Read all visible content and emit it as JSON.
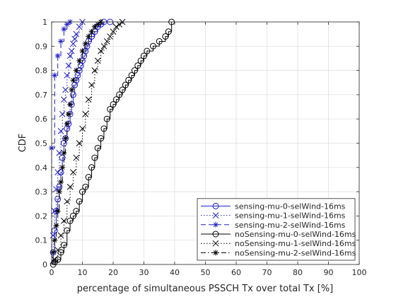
{
  "chart_data": {
    "type": "line",
    "subtype": "empirical CDF (stairs)",
    "title": "",
    "xlabel": "percentage of simultaneous PSSCH Tx over total Tx [%]",
    "ylabel": "CDF",
    "xlim": [
      0,
      100
    ],
    "ylim": [
      0,
      1
    ],
    "x_ticks": [
      "0",
      "10",
      "20",
      "30",
      "40",
      "50",
      "60",
      "70",
      "80",
      "90",
      "100"
    ],
    "y_ticks": [
      "0",
      "0.1",
      "0.2",
      "0.3",
      "0.4",
      "0.5",
      "0.6",
      "0.7",
      "0.8",
      "0.9",
      "1"
    ],
    "grid": true,
    "box": true,
    "legend_position": "bottom-right",
    "series": [
      {
        "name": "sensing-mu-0-selWind-16ms",
        "color": "#1f1fcc",
        "line_style": "solid",
        "marker": "circle",
        "x": [
          0.5,
          1,
          1.5,
          2,
          2.5,
          3,
          3.5,
          4,
          4.5,
          5,
          5.5,
          6,
          6.5,
          7,
          7.5,
          8,
          8.5,
          9,
          9.5,
          10,
          10.5,
          11,
          11.5,
          12,
          13,
          14,
          15,
          16,
          17,
          19
        ],
        "y": [
          0.05,
          0.14,
          0.22,
          0.27,
          0.32,
          0.38,
          0.44,
          0.5,
          0.52,
          0.56,
          0.58,
          0.62,
          0.66,
          0.7,
          0.74,
          0.76,
          0.78,
          0.8,
          0.82,
          0.84,
          0.86,
          0.88,
          0.9,
          0.92,
          0.94,
          0.96,
          0.98,
          0.99,
          1.0,
          1.0
        ]
      },
      {
        "name": "sensing-mu-1-selWind-16ms",
        "color": "#1f1fcc",
        "line_style": "dotted",
        "marker": "x",
        "x": [
          0.5,
          1,
          1.5,
          2,
          2.5,
          3,
          3.5,
          4,
          4.5,
          5,
          5.5,
          6,
          6.5,
          7,
          7.5,
          8,
          9,
          10
        ],
        "y": [
          0.12,
          0.22,
          0.31,
          0.38,
          0.46,
          0.55,
          0.62,
          0.68,
          0.72,
          0.78,
          0.82,
          0.86,
          0.88,
          0.91,
          0.93,
          0.95,
          0.98,
          1.0
        ]
      },
      {
        "name": "sensing-mu-2-selWind-16ms",
        "color": "#1f1fcc",
        "line_style": "dashed",
        "marker": "asterisk",
        "x": [
          0,
          1,
          2,
          3,
          4,
          5,
          6
        ],
        "y": [
          0.48,
          0.78,
          0.86,
          0.92,
          0.97,
          0.99,
          1.0
        ]
      },
      {
        "name": "noSensing-mu-0-selWind-16ms",
        "color": "#000000",
        "line_style": "solid",
        "marker": "circle",
        "x": [
          0.5,
          1,
          2,
          3,
          4,
          5,
          6,
          7,
          8,
          9,
          10,
          11,
          12,
          13,
          14,
          15,
          16,
          17,
          18,
          19,
          20,
          21,
          22,
          23,
          24,
          25,
          26,
          27,
          28,
          29,
          30,
          31,
          33,
          35,
          37,
          38,
          39
        ],
        "y": [
          0.0,
          0.01,
          0.02,
          0.05,
          0.08,
          0.14,
          0.18,
          0.2,
          0.22,
          0.26,
          0.3,
          0.32,
          0.36,
          0.4,
          0.44,
          0.48,
          0.52,
          0.56,
          0.6,
          0.64,
          0.66,
          0.68,
          0.7,
          0.72,
          0.74,
          0.76,
          0.78,
          0.8,
          0.82,
          0.84,
          0.86,
          0.88,
          0.9,
          0.92,
          0.94,
          0.96,
          1.0
        ]
      },
      {
        "name": "noSensing-mu-1-selWind-16ms",
        "color": "#000000",
        "line_style": "dotted",
        "marker": "x",
        "x": [
          1,
          2,
          3,
          4,
          5,
          6,
          7,
          8,
          9,
          10,
          11,
          12,
          13,
          14,
          15,
          16,
          17,
          18,
          19,
          20,
          21,
          22,
          23
        ],
        "y": [
          0.02,
          0.06,
          0.12,
          0.18,
          0.26,
          0.32,
          0.38,
          0.44,
          0.5,
          0.56,
          0.62,
          0.68,
          0.74,
          0.8,
          0.84,
          0.88,
          0.9,
          0.92,
          0.94,
          0.96,
          0.98,
          0.99,
          1.0
        ]
      },
      {
        "name": "noSensing-mu-2-selWind-16ms",
        "color": "#000000",
        "line_style": "dashdot",
        "marker": "asterisk",
        "x": [
          0.5,
          1,
          1.5,
          2,
          2.5,
          3,
          3.5,
          4,
          4.5,
          5,
          5.5,
          6,
          6.5,
          7,
          8,
          9,
          10,
          11,
          12,
          13,
          14,
          15,
          16
        ],
        "y": [
          0.05,
          0.1,
          0.16,
          0.22,
          0.3,
          0.34,
          0.4,
          0.46,
          0.52,
          0.58,
          0.62,
          0.66,
          0.72,
          0.76,
          0.8,
          0.84,
          0.88,
          0.91,
          0.94,
          0.96,
          0.98,
          0.99,
          1.0
        ]
      }
    ]
  }
}
